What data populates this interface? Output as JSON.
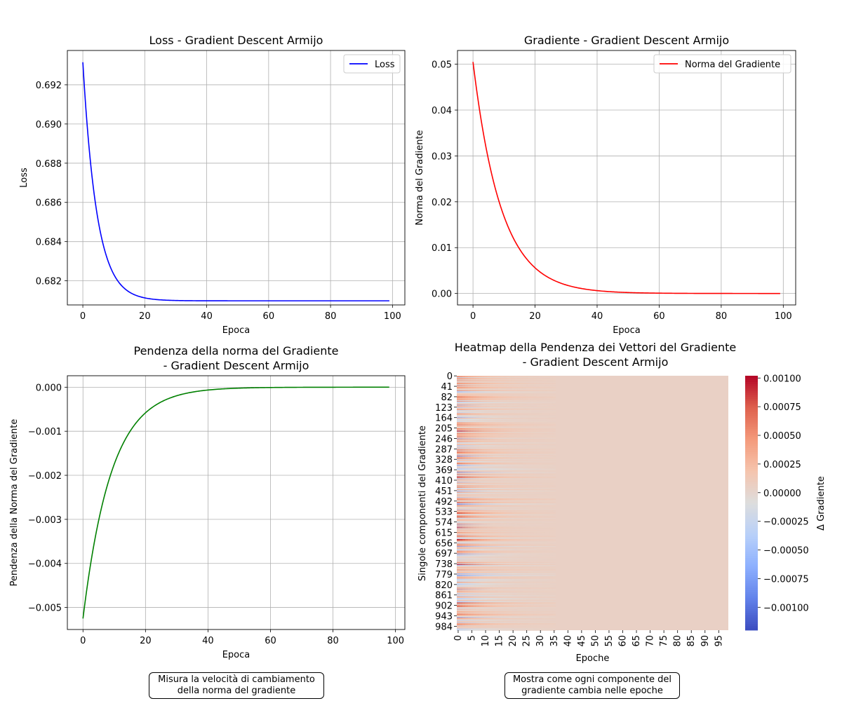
{
  "chart_data": [
    {
      "type": "line",
      "title": "Loss - Gradient Descent Armijo",
      "xlabel": "Epoca",
      "ylabel": "Loss",
      "xlim": [
        -5,
        104
      ],
      "ylim": [
        0.68077,
        0.69375
      ],
      "xticks": [
        "0",
        "20",
        "40",
        "60",
        "80",
        "100"
      ],
      "yticks": [
        "0.682",
        "0.684",
        "0.686",
        "0.688",
        "0.690",
        "0.692"
      ],
      "grid": true,
      "legend": "top-right",
      "series": [
        {
          "name": "Loss",
          "color": "#0000ff",
          "model": "exp",
          "a": 0.68098,
          "b": 0.01217,
          "k": 0.22,
          "x_start": 0,
          "x_end": 99
        }
      ]
    },
    {
      "type": "line",
      "title": "Gradiente - Gradient Descent Armijo",
      "xlabel": "Epoca",
      "ylabel": "Norma del Gradiente",
      "xlim": [
        -5,
        104
      ],
      "ylim": [
        -0.0025,
        0.053
      ],
      "xticks": [
        "0",
        "20",
        "40",
        "60",
        "80",
        "100"
      ],
      "yticks": [
        "0.00",
        "0.01",
        "0.02",
        "0.03",
        "0.04",
        "0.05"
      ],
      "grid": true,
      "legend": "top-right",
      "series": [
        {
          "name": "Norma del Gradiente",
          "color": "#ff0000",
          "model": "exp",
          "a": 0.0,
          "b": 0.0505,
          "k": 0.11,
          "x_start": 0,
          "x_end": 99
        }
      ]
    },
    {
      "type": "line",
      "title": "Pendenza della norma del Gradiente\n- Gradient Descent Armijo",
      "xlabel": "Epoca",
      "ylabel": "Pendenza della Norma del Gradiente",
      "xlim": [
        -5,
        103
      ],
      "ylim": [
        -0.0055,
        0.00026
      ],
      "xticks": [
        "0",
        "20",
        "40",
        "60",
        "80",
        "100"
      ],
      "yticks": [
        "−0.005",
        "−0.004",
        "−0.003",
        "−0.002",
        "−0.001",
        "0.000"
      ],
      "grid": true,
      "series": [
        {
          "color": "#008000",
          "model": "exp",
          "a": 0.0,
          "b": -0.00525,
          "k": 0.11,
          "x_start": 0,
          "x_end": 98
        }
      ]
    },
    {
      "type": "heatmap",
      "title": "Heatmap della Pendenza dei Vettori del Gradiente\n- Gradient Descent Armijo",
      "xlabel": "Epoche",
      "ylabel": "Singole componenti del Gradiente",
      "colorbar_label": "Δ Gradiente",
      "colormap": "coolwarm",
      "n_rows": 1000,
      "n_cols": 99,
      "vmin": -0.0012,
      "vmax": 0.00102,
      "xticks": [
        "0",
        "5",
        "10",
        "15",
        "20",
        "25",
        "30",
        "35",
        "40",
        "45",
        "50",
        "55",
        "60",
        "65",
        "70",
        "75",
        "80",
        "85",
        "90",
        "95"
      ],
      "yticks": [
        "0",
        "41",
        "82",
        "123",
        "164",
        "205",
        "246",
        "287",
        "328",
        "369",
        "410",
        "451",
        "492",
        "533",
        "574",
        "615",
        "656",
        "697",
        "738",
        "779",
        "820",
        "861",
        "902",
        "943",
        "984"
      ],
      "colorbar_ticks": [
        "0.00100",
        "0.00075",
        "0.00050",
        "0.00025",
        "0.00000",
        "−0.00025",
        "−0.00050",
        "−0.00075",
        "−0.00100"
      ],
      "colorbar_values": [
        0.001,
        0.00075,
        0.0005,
        0.00025,
        0.0,
        -0.00025,
        -0.0005,
        -0.00075,
        -0.001
      ],
      "background_value": 5e-05
    }
  ],
  "notes": [
    {
      "text": "Misura la velocità di cambiamento\ndella norma del gradiente"
    },
    {
      "text": "Mostra come ogni componente del\ngradiente cambia nelle epoche"
    }
  ]
}
